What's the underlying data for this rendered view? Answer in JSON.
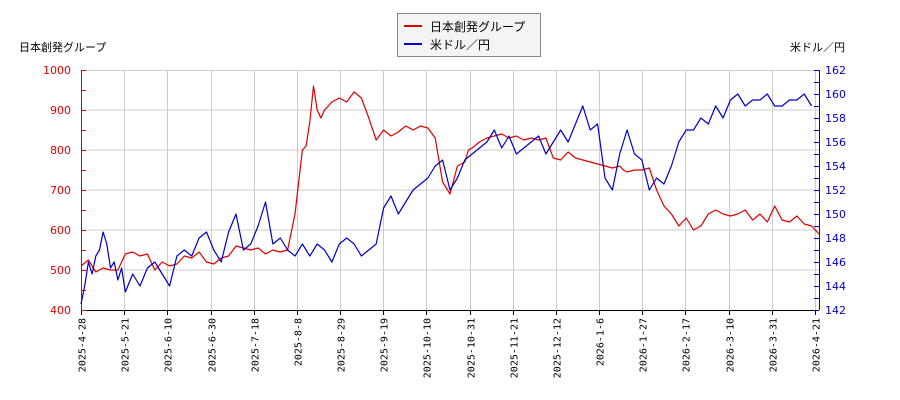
{
  "chart_data": {
    "type": "line",
    "title": "",
    "legend": [
      "日本創発グループ",
      "米ドル／円"
    ],
    "legend_position": "top-center",
    "y_left_label": "日本創発グループ",
    "y_right_label": "米ドル／円",
    "y_left_range": [
      400,
      1000
    ],
    "y_right_range": [
      142,
      162
    ],
    "y_left_ticks": [
      400,
      500,
      600,
      700,
      800,
      900,
      1000
    ],
    "y_right_ticks": [
      142,
      144,
      146,
      148,
      150,
      152,
      154,
      156,
      158,
      160,
      162
    ],
    "x_tick_labels": [
      "2025-4-28",
      "2025-5-21",
      "2025-6-10",
      "2025-6-30",
      "2025-7-18",
      "2025-8-8",
      "2025-8-29",
      "2025-9-19",
      "2025-10-10",
      "2025-10-31",
      "2025-11-21",
      "2025-12-12",
      "2026-1-6",
      "2026-1-27",
      "2026-2-17",
      "2026-3-10",
      "2026-3-31",
      "2026-4-21"
    ],
    "grid": true,
    "colors": {
      "left": "#dd0000",
      "right": "#0000cc"
    },
    "series": [
      {
        "name": "日本創発グループ",
        "axis": "left",
        "color": "#dd0000",
        "x_frac": [
          0,
          0.01,
          0.02,
          0.03,
          0.04,
          0.05,
          0.06,
          0.07,
          0.08,
          0.09,
          0.1,
          0.11,
          0.12,
          0.13,
          0.14,
          0.15,
          0.16,
          0.17,
          0.18,
          0.19,
          0.2,
          0.21,
          0.22,
          0.23,
          0.24,
          0.25,
          0.26,
          0.27,
          0.28,
          0.29,
          0.3,
          0.305,
          0.31,
          0.315,
          0.32,
          0.325,
          0.33,
          0.335,
          0.34,
          0.345,
          0.35,
          0.36,
          0.37,
          0.38,
          0.39,
          0.4,
          0.41,
          0.42,
          0.43,
          0.44,
          0.45,
          0.46,
          0.47,
          0.48,
          0.49,
          0.5,
          0.51,
          0.52,
          0.525,
          0.53,
          0.54,
          0.55,
          0.56,
          0.57,
          0.58,
          0.59,
          0.6,
          0.61,
          0.62,
          0.63,
          0.64,
          0.65,
          0.66,
          0.67,
          0.68,
          0.69,
          0.7,
          0.71,
          0.72,
          0.73,
          0.735,
          0.74,
          0.75,
          0.76,
          0.77,
          0.78,
          0.79,
          0.8,
          0.81,
          0.82,
          0.83,
          0.84,
          0.85,
          0.86,
          0.87,
          0.88,
          0.89,
          0.9,
          0.91,
          0.92,
          0.93,
          0.94,
          0.95,
          0.96,
          0.97,
          0.98,
          0.99,
          1.0
        ],
        "values": [
          510,
          525,
          495,
          505,
          500,
          500,
          540,
          545,
          535,
          540,
          500,
          520,
          510,
          515,
          535,
          530,
          545,
          520,
          515,
          530,
          535,
          560,
          555,
          550,
          555,
          540,
          550,
          545,
          550,
          640,
          800,
          810,
          870,
          960,
          900,
          880,
          900,
          910,
          920,
          925,
          930,
          920,
          945,
          930,
          880,
          825,
          850,
          835,
          845,
          860,
          850,
          860,
          855,
          830,
          720,
          690,
          760,
          770,
          800,
          805,
          820,
          830,
          835,
          840,
          830,
          835,
          825,
          830,
          825,
          830,
          780,
          775,
          795,
          780,
          775,
          770,
          765,
          760,
          755,
          760,
          750,
          745,
          750,
          750,
          755,
          700,
          660,
          640,
          610,
          630,
          600,
          610,
          640,
          650,
          640,
          635,
          640,
          650,
          625,
          640,
          620,
          660,
          625,
          620,
          635,
          615,
          610,
          590
        ]
      },
      {
        "name": "米ドル／円",
        "axis": "right",
        "color": "#0000cc",
        "x_frac": [
          0,
          0.005,
          0.01,
          0.015,
          0.02,
          0.025,
          0.03,
          0.035,
          0.04,
          0.045,
          0.05,
          0.055,
          0.06,
          0.07,
          0.08,
          0.09,
          0.1,
          0.11,
          0.12,
          0.13,
          0.14,
          0.15,
          0.16,
          0.17,
          0.18,
          0.19,
          0.2,
          0.21,
          0.22,
          0.23,
          0.24,
          0.25,
          0.26,
          0.27,
          0.28,
          0.29,
          0.3,
          0.31,
          0.32,
          0.33,
          0.34,
          0.35,
          0.36,
          0.37,
          0.38,
          0.39,
          0.4,
          0.41,
          0.42,
          0.43,
          0.44,
          0.45,
          0.46,
          0.47,
          0.48,
          0.49,
          0.5,
          0.51,
          0.52,
          0.53,
          0.54,
          0.55,
          0.56,
          0.57,
          0.58,
          0.59,
          0.6,
          0.61,
          0.62,
          0.63,
          0.64,
          0.65,
          0.66,
          0.67,
          0.68,
          0.69,
          0.7,
          0.71,
          0.72,
          0.73,
          0.74,
          0.75,
          0.76,
          0.77,
          0.78,
          0.79,
          0.8,
          0.81,
          0.82,
          0.83,
          0.84,
          0.85,
          0.86,
          0.87,
          0.88,
          0.89,
          0.9,
          0.91,
          0.92,
          0.93,
          0.94,
          0.95,
          0.96,
          0.97,
          0.98,
          0.99,
          1.0
        ],
        "values": [
          142.5,
          144,
          146,
          145,
          146.5,
          147,
          148.5,
          147.5,
          145.5,
          146,
          144.5,
          145.5,
          143.5,
          145,
          144,
          145.5,
          146,
          145,
          144,
          146.5,
          147,
          146.5,
          148,
          148.5,
          147,
          146,
          148.5,
          150,
          147,
          147.5,
          149,
          151,
          147.5,
          148,
          147,
          146.5,
          147.5,
          146.5,
          147.5,
          147,
          146,
          147.5,
          148,
          147.5,
          146.5,
          147,
          147.5,
          150.5,
          151.5,
          150,
          151,
          152,
          152.5,
          153,
          154,
          154.5,
          152,
          153,
          154.5,
          155,
          155.5,
          156,
          157,
          155.5,
          156.5,
          155,
          155.5,
          156,
          156.5,
          155,
          156,
          157,
          156,
          157.5,
          159,
          157,
          157.5,
          153,
          152,
          155,
          157,
          155,
          154.5,
          152,
          153,
          152.5,
          154,
          156,
          157,
          157,
          158,
          157.5,
          159,
          158,
          159.5,
          160,
          159,
          159.5,
          159.5,
          160,
          159,
          159,
          159.5,
          159.5,
          160,
          159
        ]
      }
    ]
  },
  "legend": {
    "items": [
      {
        "label": "日本創発グループ",
        "color": "#dd0000"
      },
      {
        "label": "米ドル／円",
        "color": "#0000cc"
      }
    ]
  },
  "axes": {
    "left_title": "日本創発グループ",
    "right_title": "米ドル／円"
  }
}
